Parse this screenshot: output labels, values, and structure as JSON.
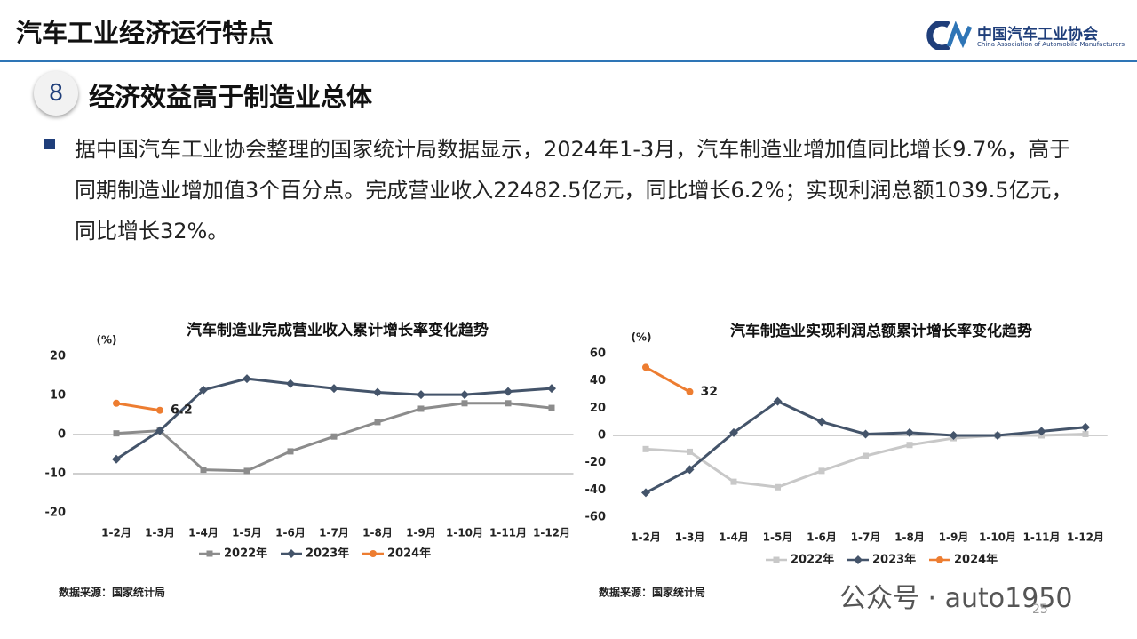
{
  "header": {
    "title": "汽车工业经济运行特点",
    "logo_name": "中国汽车工业协会",
    "logo_english": "China Association of Automobile Manufacturers"
  },
  "section": {
    "number": "8",
    "title": "经济效益高于制造业总体"
  },
  "paragraph": "据中国汽车工业协会整理的国家统计局数据显示，2024年1-3月，汽车制造业增加值同比增长9.7%，高于同期制造业增加值3个百分点。完成营业收入22482.5亿元，同比增长6.2%；实现利润总额1039.5亿元，同比增长32%。",
  "chart_data": [
    {
      "type": "line",
      "title": "汽车制造业完成营业收入累计增长率变化趋势",
      "y_label": "(%)",
      "source": "数据来源：国家统计局",
      "categories": [
        "1-2月",
        "1-3月",
        "1-4月",
        "1-5月",
        "1-6月",
        "1-7月",
        "1-8月",
        "1-9月",
        "1-10月",
        "1-11月",
        "1-12月"
      ],
      "ylim": [
        -20,
        20
      ],
      "yticks": [
        -20,
        -10,
        0,
        10,
        20
      ],
      "series": [
        {
          "name": "2022年",
          "color": "#8c8c8c",
          "marker": "square",
          "values": [
            0.3,
            1,
            -9,
            -9.3,
            -4.3,
            -0.5,
            3.2,
            6.6,
            8,
            8,
            6.8
          ]
        },
        {
          "name": "2023年",
          "color": "#44546a",
          "marker": "diamond",
          "values": [
            -6.3,
            1,
            11.4,
            14.3,
            13,
            11.8,
            10.8,
            10.2,
            10.2,
            11,
            11.8
          ]
        },
        {
          "name": "2024年",
          "color": "#ed7d31",
          "marker": "circle",
          "values": [
            8,
            6.2,
            null,
            null,
            null,
            null,
            null,
            null,
            null,
            null,
            null
          ],
          "value_labels": [
            null,
            "6.2",
            null,
            null,
            null,
            null,
            null,
            null,
            null,
            null,
            null
          ]
        }
      ]
    },
    {
      "type": "line",
      "title": "汽车制造业实现利润总额累计增长率变化趋势",
      "y_label": "(%)",
      "source": "数据来源：国家统计局",
      "categories": [
        "1-2月",
        "1-3月",
        "1-4月",
        "1-5月",
        "1-6月",
        "1-7月",
        "1-8月",
        "1-9月",
        "1-10月",
        "1-11月",
        "1-12月"
      ],
      "ylim": [
        -60,
        60
      ],
      "yticks": [
        -60,
        -40,
        -20,
        0,
        20,
        40,
        60
      ],
      "series": [
        {
          "name": "2022年",
          "color": "#c8c8c8",
          "marker": "square",
          "values": [
            -10,
            -12,
            -34,
            -38,
            -26,
            -15,
            -7,
            -2,
            0,
            0,
            1
          ]
        },
        {
          "name": "2023年",
          "color": "#44546a",
          "marker": "diamond",
          "values": [
            -42,
            -25,
            2,
            25,
            10,
            1,
            2,
            0,
            0,
            3,
            6
          ]
        },
        {
          "name": "2024年",
          "color": "#ed7d31",
          "marker": "circle",
          "values": [
            50,
            32,
            null,
            null,
            null,
            null,
            null,
            null,
            null,
            null,
            null
          ],
          "value_labels": [
            null,
            "32",
            null,
            null,
            null,
            null,
            null,
            null,
            null,
            null,
            null
          ]
        }
      ]
    }
  ],
  "watermark": "公众号 · auto1950",
  "page_number": "25"
}
